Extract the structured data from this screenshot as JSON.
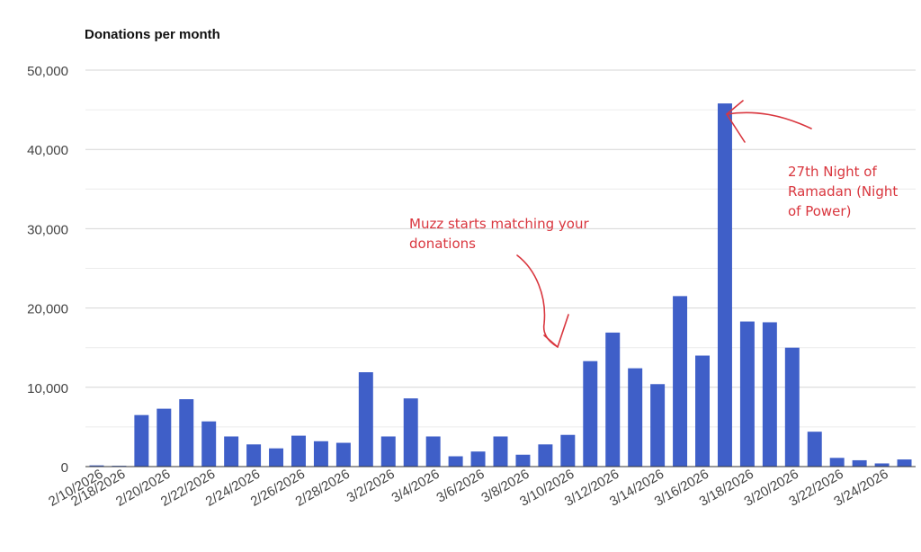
{
  "chart_data": {
    "type": "bar",
    "title": "Donations per month",
    "xlabel": "",
    "ylabel": "",
    "ylim": [
      0,
      50000
    ],
    "yticks": [
      "0",
      "10,000",
      "20,000",
      "30,000",
      "40,000",
      "50,000"
    ],
    "grid": true,
    "legend": "none",
    "bar_color": "#3f5fc8",
    "categories": [
      "2/10/2026",
      "2/18/2026",
      "2/19/2026",
      "2/20/2026",
      "2/21/2026",
      "2/22/2026",
      "2/23/2026",
      "2/24/2026",
      "2/25/2026",
      "2/26/2026",
      "2/27/2026",
      "2/28/2026",
      "3/1/2026",
      "3/2/2026",
      "3/3/2026",
      "3/4/2026",
      "3/5/2026",
      "3/6/2026",
      "3/7/2026",
      "3/8/2026",
      "3/9/2026",
      "3/10/2026",
      "3/11/2026",
      "3/12/2026",
      "3/13/2026",
      "3/14/2026",
      "3/15/2026",
      "3/16/2026",
      "3/17/2026",
      "3/18/2026",
      "3/19/2026",
      "3/20/2026",
      "3/21/2026",
      "3/22/2026",
      "3/23/2026",
      "3/24/2026",
      "3/25/2026"
    ],
    "shown_tick_labels": [
      "2/10/2026",
      "2/18/2026",
      "2/20/2026",
      "2/22/2026",
      "2/24/2026",
      "2/26/2026",
      "2/28/2026",
      "3/2/2026",
      "3/4/2026",
      "3/6/2026",
      "3/8/2026",
      "3/10/2026",
      "3/12/2026",
      "3/14/2026",
      "3/16/2026",
      "3/18/2026",
      "3/20/2026",
      "3/22/2026",
      "3/24/2026"
    ],
    "values": [
      150,
      100,
      6500,
      7300,
      8500,
      5700,
      3800,
      2800,
      2300,
      3900,
      3200,
      3000,
      11900,
      3800,
      8600,
      3800,
      1300,
      1900,
      3800,
      1500,
      2800,
      4000,
      13300,
      16900,
      12400,
      10400,
      21500,
      14000,
      45800,
      18300,
      18200,
      15000,
      4400,
      1100,
      800,
      400,
      900
    ],
    "annotations": [
      {
        "text": "Muzz starts matching your\ndonations",
        "points_to": "3/9/2026"
      },
      {
        "text": "27th Night of\nRamadan (Night\nof Power)",
        "points_to": "3/16/2026"
      }
    ],
    "annotation_color": "#d9363e"
  }
}
